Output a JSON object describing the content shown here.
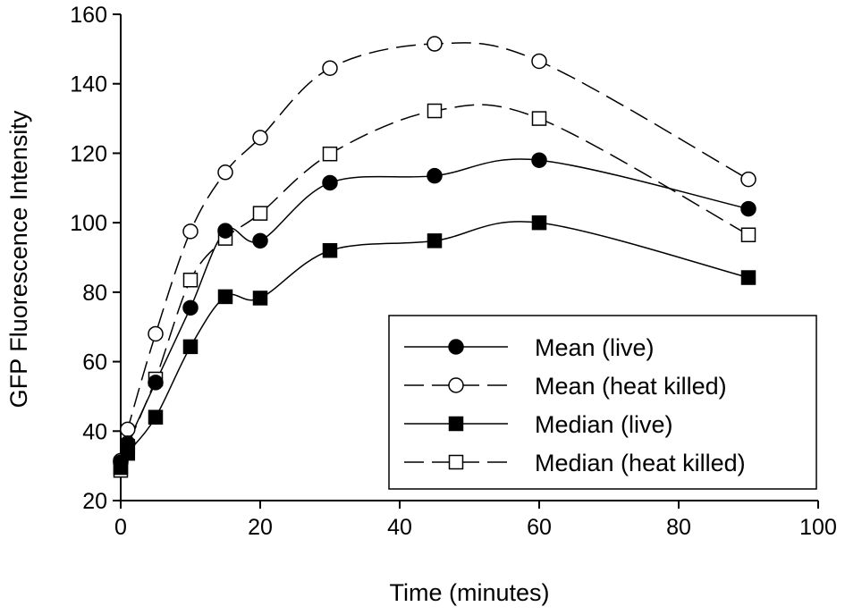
{
  "chart_data": {
    "type": "line",
    "title": "",
    "xlabel": "Time (minutes)",
    "ylabel": "GFP Fluorescence Intensity",
    "xlim": [
      0,
      100
    ],
    "ylim": [
      20,
      160
    ],
    "xticks": [
      0,
      20,
      40,
      60,
      80,
      100
    ],
    "yticks": [
      20,
      40,
      60,
      80,
      100,
      120,
      140,
      160
    ],
    "grid": false,
    "legend_position": "bottom-right",
    "x": [
      0,
      1,
      5,
      10,
      15,
      20,
      30,
      45,
      60,
      90
    ],
    "series": [
      {
        "name": "Mean (live)",
        "marker": "circle",
        "filled": true,
        "dashed": false,
        "values": [
          31,
          36.5,
          54,
          75.5,
          97.7,
          94.8,
          111.5,
          113.5,
          118,
          104
        ]
      },
      {
        "name": "Mean (heat killed)",
        "marker": "circle",
        "filled": false,
        "dashed": true,
        "values": [
          31.5,
          40.5,
          68,
          97.5,
          114.5,
          124.5,
          144.5,
          151.5,
          146.5,
          112.5
        ]
      },
      {
        "name": "Median (live)",
        "marker": "square",
        "filled": true,
        "dashed": false,
        "values": [
          29.5,
          33.6,
          44,
          64.3,
          78.7,
          78.3,
          92,
          94.8,
          100,
          84.2
        ]
      },
      {
        "name": "Median (heat killed)",
        "marker": "square",
        "filled": false,
        "dashed": true,
        "values": [
          28.7,
          35.6,
          55,
          83.5,
          95.5,
          102.7,
          119.8,
          132.2,
          130,
          96.5
        ]
      }
    ]
  }
}
